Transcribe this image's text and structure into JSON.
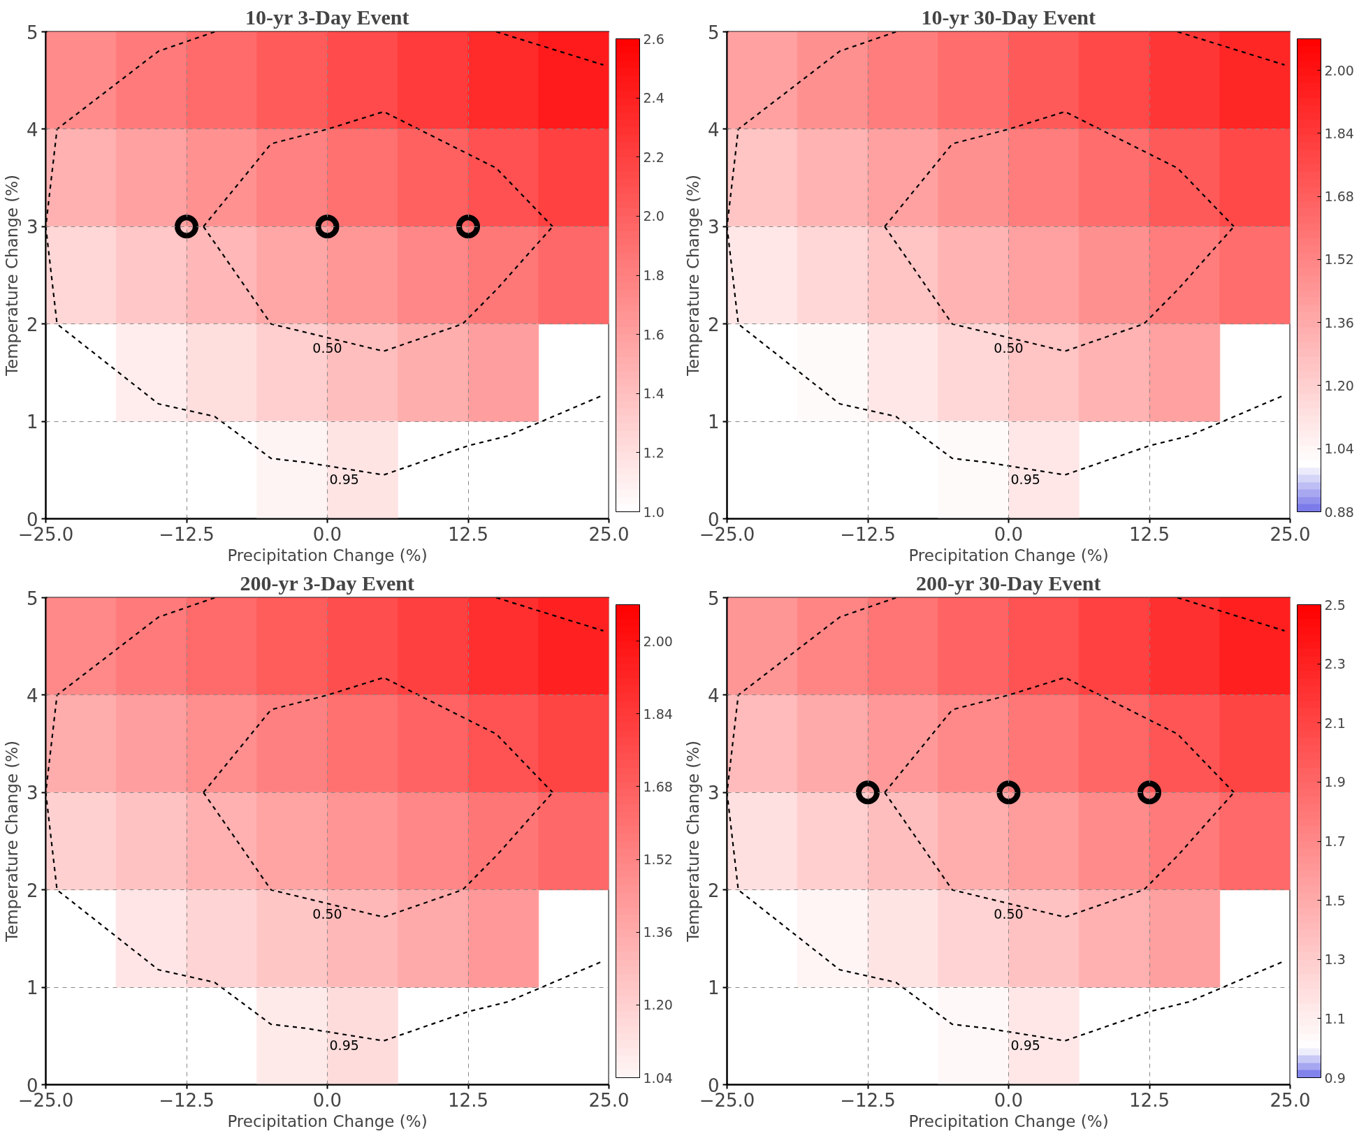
{
  "chart_data": [
    {
      "type": "heatmap",
      "title": "10-yr 3-Day Event",
      "xlabel": "Precipitation Change (%)",
      "ylabel": "Temperature Change (%)",
      "grid": true,
      "xlim": [
        -25,
        25
      ],
      "ylim": [
        0,
        5
      ],
      "xticks": [
        {
          "value": -25,
          "label": "−25.0"
        },
        {
          "value": -12.5,
          "label": "−12.5"
        },
        {
          "value": 0,
          "label": "0.0"
        },
        {
          "value": 12.5,
          "label": "12.5"
        },
        {
          "value": 25,
          "label": "25.0"
        }
      ],
      "yticks": [
        0,
        1,
        2,
        3,
        4,
        5
      ],
      "clim": [
        1.0,
        2.6
      ],
      "cticks": [
        {
          "value": 1.0,
          "label": "1.0"
        },
        {
          "value": 1.2,
          "label": "1.2"
        },
        {
          "value": 1.4,
          "label": "1.4"
        },
        {
          "value": 1.6,
          "label": "1.6"
        },
        {
          "value": 1.8,
          "label": "1.8"
        },
        {
          "value": 2.0,
          "label": "2.0"
        },
        {
          "value": 2.2,
          "label": "2.2"
        },
        {
          "value": 2.4,
          "label": "2.4"
        },
        {
          "value": 2.6,
          "label": "2.6"
        }
      ],
      "x": [
        -21.875,
        -15.625,
        -9.375,
        -3.125,
        3.125,
        9.375,
        15.625,
        21.875
      ],
      "y": [
        4.5,
        3.5,
        2.5,
        1.5,
        0.5
      ],
      "cells": [
        [
          1.73,
          1.83,
          1.93,
          2.03,
          2.13,
          2.23,
          2.33,
          2.43
        ],
        [
          1.49,
          1.59,
          1.69,
          1.79,
          1.89,
          1.99,
          2.09,
          2.19
        ],
        [
          1.25,
          1.35,
          1.45,
          1.55,
          1.65,
          1.75,
          1.85,
          1.95
        ],
        [
          null,
          1.11,
          1.21,
          1.31,
          1.41,
          1.51,
          1.61,
          null
        ],
        [
          null,
          null,
          null,
          1.07,
          1.17,
          null,
          null,
          null
        ]
      ],
      "series": [
        {
          "type": "line",
          "name": "0.95",
          "color": "#000000",
          "line_style": "dashed",
          "x": [
            -10,
            -15,
            -24,
            -25,
            -24,
            -15,
            -10,
            -5,
            -2,
            5,
            12.5,
            16,
            24.5,
            null,
            15,
            24.5
          ],
          "values": [
            5.0,
            4.8,
            4.0,
            3.0,
            2.0,
            1.18,
            1.05,
            0.62,
            0.58,
            0.45,
            0.75,
            0.85,
            1.27,
            null,
            5.0,
            4.66
          ]
        },
        {
          "type": "line",
          "color": "#000000",
          "line_style": "dashed",
          "x": [
            -11,
            -5,
            0,
            5,
            15,
            20
          ],
          "values": [
            3.0,
            3.85,
            4.0,
            4.18,
            3.6,
            3.0
          ]
        },
        {
          "type": "line",
          "name": "0.50",
          "color": "#000000",
          "line_style": "dashed",
          "x": [
            -11,
            -5,
            5,
            12,
            15,
            20
          ],
          "values": [
            3.0,
            2.0,
            1.72,
            2.0,
            2.35,
            3.0
          ]
        },
        {
          "type": "scatter",
          "marker": "circle",
          "color": "#000000",
          "x": [
            -12.5,
            0,
            12.5
          ],
          "values": [
            3,
            3,
            3
          ]
        }
      ]
    },
    {
      "type": "heatmap",
      "title": "10-yr 30-Day Event",
      "xlabel": "Precipitation Change (%)",
      "ylabel": "Temperature Change (%)",
      "grid": true,
      "xlim": [
        -25,
        25
      ],
      "ylim": [
        0,
        5
      ],
      "xticks": [
        {
          "value": -25,
          "label": "−25.0"
        },
        {
          "value": -12.5,
          "label": "−12.5"
        },
        {
          "value": 0,
          "label": "0.0"
        },
        {
          "value": 12.5,
          "label": "12.5"
        },
        {
          "value": 25,
          "label": "25.0"
        }
      ],
      "yticks": [
        0,
        1,
        2,
        3,
        4,
        5
      ],
      "clim": [
        0.88,
        2.08
      ],
      "cticks": [
        {
          "value": 0.88,
          "label": "0.88"
        },
        {
          "value": 1.04,
          "label": "1.04"
        },
        {
          "value": 1.2,
          "label": "1.20"
        },
        {
          "value": 1.36,
          "label": "1.36"
        },
        {
          "value": 1.52,
          "label": "1.52"
        },
        {
          "value": 1.68,
          "label": "1.68"
        },
        {
          "value": 1.84,
          "label": "1.84"
        },
        {
          "value": 2.0,
          "label": "2.00"
        }
      ],
      "x": [
        -21.875,
        -15.625,
        -9.375,
        -3.125,
        3.125,
        9.375,
        15.625,
        21.875
      ],
      "y": [
        4.5,
        3.5,
        2.5,
        1.5,
        0.5
      ],
      "cells": [
        [
          1.4,
          1.47,
          1.55,
          1.62,
          1.7,
          1.77,
          1.85,
          1.92
        ],
        [
          1.25,
          1.32,
          1.4,
          1.47,
          1.55,
          1.62,
          1.7,
          1.77
        ],
        [
          1.1,
          1.17,
          1.25,
          1.32,
          1.4,
          1.47,
          1.55,
          1.62
        ],
        [
          null,
          1.02,
          1.1,
          1.17,
          1.25,
          1.32,
          1.4,
          null
        ],
        [
          null,
          null,
          null,
          1.02,
          1.1,
          null,
          null,
          null
        ]
      ],
      "series": [
        {
          "type": "line",
          "name": "0.95",
          "color": "#000000",
          "line_style": "dashed",
          "x": [
            -10,
            -15,
            -24,
            -25,
            -24,
            -15,
            -10,
            -5,
            -2,
            5,
            12.5,
            16,
            24.5,
            null,
            15,
            24.5
          ],
          "values": [
            5.0,
            4.8,
            4.0,
            3.0,
            2.0,
            1.18,
            1.05,
            0.62,
            0.58,
            0.45,
            0.75,
            0.85,
            1.27,
            null,
            5.0,
            4.66
          ]
        },
        {
          "type": "line",
          "color": "#000000",
          "line_style": "dashed",
          "x": [
            -11,
            -5,
            0,
            5,
            15,
            20
          ],
          "values": [
            3.0,
            3.85,
            4.0,
            4.18,
            3.6,
            3.0
          ]
        },
        {
          "type": "line",
          "name": "0.50",
          "color": "#000000",
          "line_style": "dashed",
          "x": [
            -11,
            -5,
            5,
            12,
            15,
            20
          ],
          "values": [
            3.0,
            2.0,
            1.72,
            2.0,
            2.35,
            3.0
          ]
        }
      ]
    },
    {
      "type": "heatmap",
      "title": "200-yr 3-Day Event",
      "xlabel": "Precipitation Change (%)",
      "ylabel": "Temperature Change (%)",
      "grid": true,
      "xlim": [
        -25,
        25
      ],
      "ylim": [
        0,
        5
      ],
      "xticks": [
        {
          "value": -25,
          "label": "−25.0"
        },
        {
          "value": -12.5,
          "label": "−12.5"
        },
        {
          "value": 0,
          "label": "0.0"
        },
        {
          "value": 12.5,
          "label": "12.5"
        },
        {
          "value": 25,
          "label": "25.0"
        }
      ],
      "yticks": [
        0,
        1,
        2,
        3,
        4,
        5
      ],
      "clim": [
        1.04,
        2.08
      ],
      "cticks": [
        {
          "value": 1.04,
          "label": "1.04"
        },
        {
          "value": 1.2,
          "label": "1.20"
        },
        {
          "value": 1.36,
          "label": "1.36"
        },
        {
          "value": 1.52,
          "label": "1.52"
        },
        {
          "value": 1.68,
          "label": "1.68"
        },
        {
          "value": 1.84,
          "label": "1.84"
        },
        {
          "value": 2.0,
          "label": "2.00"
        }
      ],
      "x": [
        -21.875,
        -15.625,
        -9.375,
        -3.125,
        3.125,
        9.375,
        15.625,
        21.875
      ],
      "y": [
        4.5,
        3.5,
        2.5,
        1.5,
        0.5
      ],
      "cells": [
        [
          1.5,
          1.56,
          1.63,
          1.69,
          1.75,
          1.81,
          1.88,
          1.94
        ],
        [
          1.35,
          1.41,
          1.48,
          1.54,
          1.6,
          1.66,
          1.73,
          1.79
        ],
        [
          1.2,
          1.26,
          1.33,
          1.39,
          1.45,
          1.51,
          1.58,
          1.64
        ],
        [
          null,
          1.11,
          1.18,
          1.24,
          1.3,
          1.36,
          1.43,
          null
        ],
        [
          null,
          null,
          null,
          1.09,
          1.15,
          null,
          null,
          null
        ]
      ],
      "series": [
        {
          "type": "line",
          "name": "0.95",
          "color": "#000000",
          "line_style": "dashed",
          "x": [
            -10,
            -15,
            -24,
            -25,
            -24,
            -15,
            -10,
            -5,
            -2,
            5,
            12.5,
            16,
            24.5,
            null,
            15,
            24.5
          ],
          "values": [
            5.0,
            4.8,
            4.0,
            3.0,
            2.0,
            1.18,
            1.05,
            0.62,
            0.58,
            0.45,
            0.75,
            0.85,
            1.27,
            null,
            5.0,
            4.66
          ]
        },
        {
          "type": "line",
          "color": "#000000",
          "line_style": "dashed",
          "x": [
            -11,
            -5,
            0,
            5,
            15,
            20
          ],
          "values": [
            3.0,
            3.85,
            4.0,
            4.18,
            3.6,
            3.0
          ]
        },
        {
          "type": "line",
          "name": "0.50",
          "color": "#000000",
          "line_style": "dashed",
          "x": [
            -11,
            -5,
            5,
            12,
            15,
            20
          ],
          "values": [
            3.0,
            2.0,
            1.72,
            2.0,
            2.35,
            3.0
          ]
        }
      ]
    },
    {
      "type": "heatmap",
      "title": "200-yr 30-Day Event",
      "xlabel": "Precipitation Change (%)",
      "ylabel": "Temperature Change (%)",
      "grid": true,
      "xlim": [
        -25,
        25
      ],
      "ylim": [
        0,
        5
      ],
      "xticks": [
        {
          "value": -25,
          "label": "−25.0"
        },
        {
          "value": -12.5,
          "label": "−12.5"
        },
        {
          "value": 0,
          "label": "0.0"
        },
        {
          "value": 12.5,
          "label": "12.5"
        },
        {
          "value": 25,
          "label": "25.0"
        }
      ],
      "yticks": [
        0,
        1,
        2,
        3,
        4,
        5
      ],
      "clim": [
        0.9,
        2.5
      ],
      "cticks": [
        {
          "value": 0.9,
          "label": "0.9"
        },
        {
          "value": 1.1,
          "label": "1.1"
        },
        {
          "value": 1.3,
          "label": "1.3"
        },
        {
          "value": 1.5,
          "label": "1.5"
        },
        {
          "value": 1.7,
          "label": "1.7"
        },
        {
          "value": 1.9,
          "label": "1.9"
        },
        {
          "value": 2.1,
          "label": "2.1"
        },
        {
          "value": 2.3,
          "label": "2.3"
        },
        {
          "value": 2.5,
          "label": "2.5"
        }
      ],
      "x": [
        -21.875,
        -15.625,
        -9.375,
        -3.125,
        3.125,
        9.375,
        15.625,
        21.875
      ],
      "y": [
        4.5,
        3.5,
        2.5,
        1.5,
        0.5
      ],
      "cells": [
        [
          1.62,
          1.72,
          1.82,
          1.92,
          2.02,
          2.12,
          2.22,
          2.32
        ],
        [
          1.4,
          1.5,
          1.6,
          1.7,
          1.8,
          1.9,
          2.0,
          2.1
        ],
        [
          1.18,
          1.28,
          1.38,
          1.48,
          1.58,
          1.68,
          1.78,
          1.88
        ],
        [
          null,
          1.06,
          1.16,
          1.26,
          1.36,
          1.46,
          1.56,
          null
        ],
        [
          null,
          null,
          null,
          1.04,
          1.14,
          null,
          null,
          null
        ]
      ],
      "series": [
        {
          "type": "line",
          "name": "0.95",
          "color": "#000000",
          "line_style": "dashed",
          "x": [
            -10,
            -15,
            -24,
            -25,
            -24,
            -15,
            -10,
            -5,
            -2,
            5,
            12.5,
            16,
            24.5,
            null,
            15,
            24.5
          ],
          "values": [
            5.0,
            4.8,
            4.0,
            3.0,
            2.0,
            1.18,
            1.05,
            0.62,
            0.58,
            0.45,
            0.75,
            0.85,
            1.27,
            null,
            5.0,
            4.66
          ]
        },
        {
          "type": "line",
          "color": "#000000",
          "line_style": "dashed",
          "x": [
            -11,
            -5,
            0,
            5,
            15,
            20
          ],
          "values": [
            3.0,
            3.85,
            4.0,
            4.18,
            3.6,
            3.0
          ]
        },
        {
          "type": "line",
          "name": "0.50",
          "color": "#000000",
          "line_style": "dashed",
          "x": [
            -11,
            -5,
            5,
            12,
            15,
            20
          ],
          "values": [
            3.0,
            2.0,
            1.72,
            2.0,
            2.35,
            3.0
          ]
        },
        {
          "type": "scatter",
          "marker": "circle",
          "color": "#000000",
          "x": [
            -12.5,
            0,
            12.5
          ],
          "values": [
            3,
            3,
            3
          ]
        }
      ]
    }
  ]
}
